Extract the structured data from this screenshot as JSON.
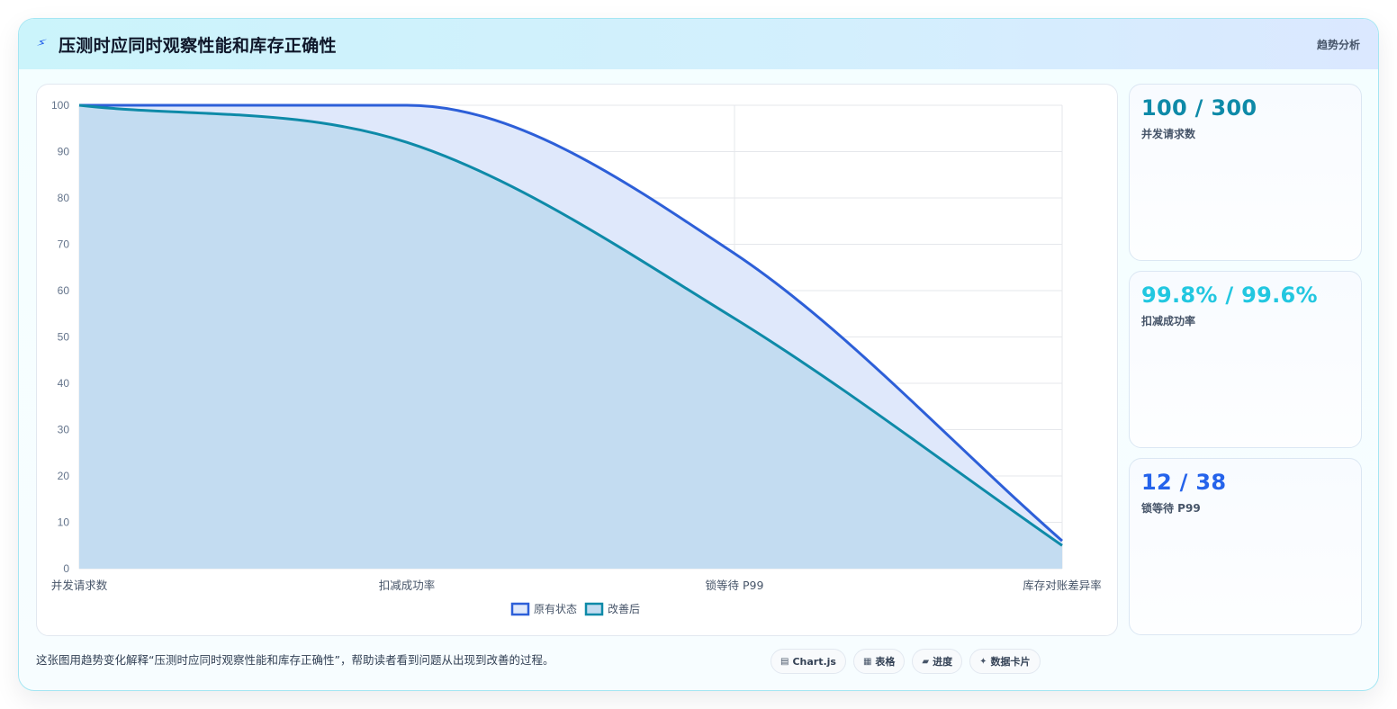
{
  "header": {
    "icon": "bolt-icon",
    "title": "压测时应同时观察性能和库存正确性",
    "tag": "趋势分析"
  },
  "chart_data": {
    "type": "area",
    "categories": [
      "并发请求数",
      "扣减成功率",
      "锁等待 P99",
      "库存对账差异率"
    ],
    "ylim": [
      0,
      100
    ],
    "yticks": [
      0,
      10,
      20,
      30,
      40,
      50,
      60,
      70,
      80,
      90,
      100
    ],
    "grid": true,
    "legend_position": "bottom",
    "series": [
      {
        "name": "原有状态",
        "values": [
          100,
          100,
          68,
          6
        ],
        "color": "#2d5fd8",
        "fill": "#dfe8fb"
      },
      {
        "name": "改善后",
        "values": [
          100,
          92,
          54,
          5
        ],
        "color": "#0e8aa8",
        "fill": "#c3dcf1"
      }
    ]
  },
  "kpis": [
    {
      "value": "100 / 300",
      "label": "并发请求数",
      "color": "#0e8aa8"
    },
    {
      "value": "99.8% / 99.6%",
      "label": "扣减成功率",
      "color": "#22c7e0"
    },
    {
      "value": "12 / 38",
      "label": "锁等待 P99",
      "color": "#2563eb"
    }
  ],
  "footer": {
    "note": "这张图用趋势变化解释“压测时应同时观察性能和库存正确性”，帮助读者看到问题从出现到改善的过程。",
    "chips": [
      {
        "icon": "▤",
        "label": "Chart.js"
      },
      {
        "icon": "▦",
        "label": "表格"
      },
      {
        "icon": "▰",
        "label": "进度"
      },
      {
        "icon": "✦",
        "label": "数据卡片"
      }
    ]
  }
}
